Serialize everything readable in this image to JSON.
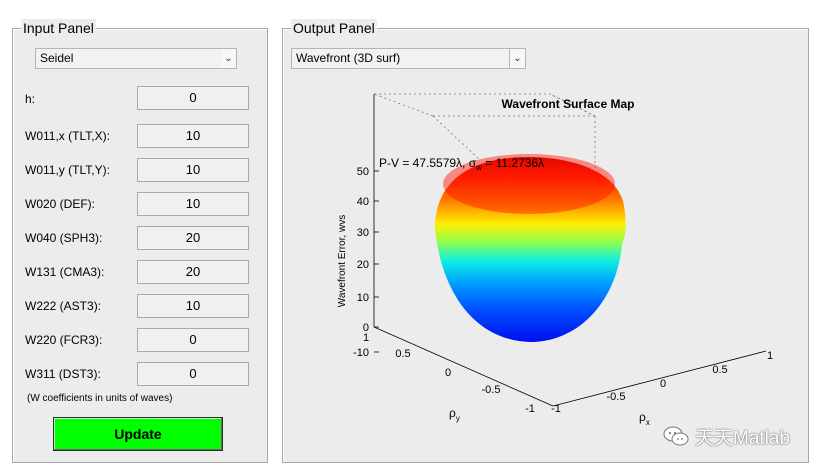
{
  "input_panel": {
    "title": "Input Panel",
    "aberration_type": "Seidel",
    "params": [
      {
        "label": "h:",
        "value": "0"
      },
      {
        "label": "W011,x (TLT,X):",
        "value": "10"
      },
      {
        "label": "W011,y (TLT,Y):",
        "value": "10"
      },
      {
        "label": "W020 (DEF):",
        "value": "10"
      },
      {
        "label": "W040 (SPH3):",
        "value": "20"
      },
      {
        "label": "W131 (CMA3):",
        "value": "20"
      },
      {
        "label": "W222 (AST3):",
        "value": "10"
      },
      {
        "label": "W220 (FCR3):",
        "value": "0"
      },
      {
        "label": "W311 (DST3):",
        "value": "0"
      }
    ],
    "note": "(W coefficients in units of waves)",
    "update_label": "Update"
  },
  "output_panel": {
    "title": "Output Panel",
    "plot_type": "Wavefront (3D surf)"
  },
  "plot": {
    "title": "Wavefront Surface Map",
    "stats": "P-V = 47.5579λ, σ",
    "stats_sub": "w",
    "stats_tail": " = 11.2736λ",
    "zlabel": "Wavefront Error, wvs",
    "xlabel": "ρ",
    "xlabel_sub": "x",
    "ylabel": "ρ",
    "ylabel_sub": "y",
    "z_ticks": [
      "50",
      "40",
      "30",
      "20",
      "10",
      "0",
      "-10"
    ],
    "y_ticks": [
      "1",
      "0.5",
      "0",
      "-0.5",
      "-1"
    ],
    "x_ticks": [
      "-1",
      "-0.5",
      "0",
      "0.5",
      "1"
    ],
    "colormap": "jet"
  },
  "watermark": {
    "text": "天天Matlab"
  }
}
